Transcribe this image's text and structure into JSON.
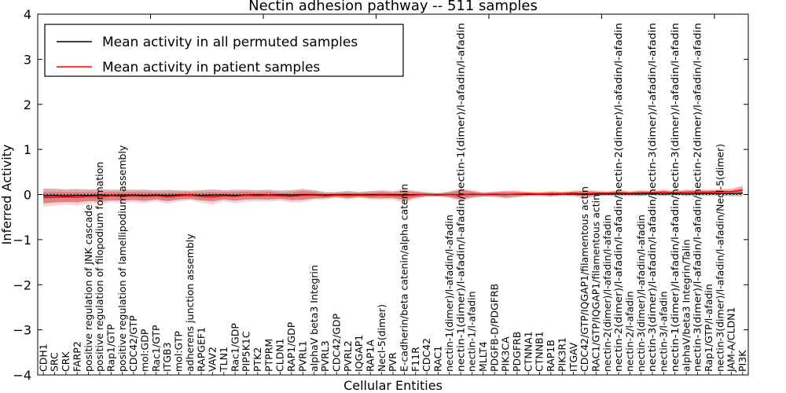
{
  "figure": {
    "title": "Nectin adhesion pathway -- 511 samples",
    "xlabel": "Cellular Entities",
    "ylabel": "Inferred Activity"
  },
  "legend": {
    "entries": [
      {
        "label": "Mean activity in all permuted samples",
        "color": "#000000"
      },
      {
        "label": "Mean activity in patient samples",
        "color": "#ff0000"
      }
    ]
  },
  "chart_data": {
    "type": "line",
    "title": "Nectin adhesion pathway -- 511 samples",
    "xlabel": "Cellular Entities",
    "ylabel": "Inferred Activity",
    "ylim": [
      -4,
      4
    ],
    "ytick_values": [
      -4,
      -3,
      -2,
      -1,
      0,
      1,
      2,
      3,
      4
    ],
    "ytick_labels": [
      "−4",
      "−3",
      "−2",
      "−1",
      "0",
      "1",
      "2",
      "3",
      "4"
    ],
    "x_major_tick_every": 10,
    "grid": false,
    "legend_position": "upper left",
    "zero_line": true,
    "categories": [
      "CDH1",
      "SRC",
      "CRK",
      "FARP2",
      "positive regulation of JNK cascade",
      "positive regulation of filopodium formation",
      "Rap1/GTP",
      "positive regulation of lamellipodium assembly",
      "CDC42/GTP",
      "mol:GDP",
      "Rac1/GTP",
      "ITGB3",
      "mol:GTP",
      "adherens junction assembly",
      "RAPGEF1",
      "VAV2",
      "TLN1",
      "Rac1/GDP",
      "PIP5K1C",
      "PTK2",
      "PTPRM",
      "CLDN1",
      "RAP1/GDP",
      "PVRL1",
      "alphaV beta3 Integrin",
      "PVRL3",
      "CDC42/GDP",
      "PVRL2",
      "IQGAP1",
      "RAP1A",
      "Necl-5(dimer)",
      "PVR",
      "E-cadherin/beta catenin/alpha catenin",
      "F11R",
      "CDC42",
      "RAC1",
      "nectin-1(dimer)/l-afadin/l-afadin",
      "nectin-1(dimer)/l-afadin/l-afadin/nectin-1(dimer)/l-afadin/l-afadin",
      "nectin-1/l-afadin",
      "MLLT4",
      "PDGFB-D/PDGFRB",
      "PIK3CA",
      "PDGFRB",
      "CTNNA1",
      "CTNNB1",
      "RAP1B",
      "PIK3R1",
      "ITGAV",
      "CDC42/GTP/IQGAP1/filamentous actin",
      "RAC1/GTP/IQGAP1/filamentous actin",
      "nectin-2(dimer)/l-afadin/l-afadin",
      "nectin-2(dimer)/l-afadin/l-afadin/nectin-2(dimer)/l-afadin/l-afadin",
      "nectin-2/l-afadin",
      "nectin-3(dimer)/l-afadin/l-afadin",
      "nectin-3(dimer)/l-afadin/l-afadin/nectin-3(dimer)/l-afadin/l-afadin",
      "nectin-3/l-afadin",
      "nectin-1(dimer)/l-afadin/l-afadin/nectin-3(dimer)/l-afadin/l-afadin",
      "alphaV/beta3 Integrin/Talin",
      "nectin-3(dimer)/l-afadin/l-afadin/nectin-2(dimer)/l-afadin/l-afadin",
      "Rap1/GTP/l-afadin",
      "nectin-3(dimer)/l-afadin/l-afadin/Necl-5(dimer)",
      "JAM-A/CLDN1",
      "PI3K"
    ],
    "series": [
      {
        "name": "Mean activity in all permuted samples",
        "color": "#000000",
        "line_width": 1.3,
        "band_color": "#999999",
        "band_opacity": 0.45,
        "values": [
          -0.03,
          -0.02,
          -0.03,
          -0.02,
          -0.02,
          -0.01,
          -0.02,
          -0.01,
          -0.01,
          -0.02,
          -0.01,
          -0.02,
          -0.01,
          -0.01,
          -0.02,
          -0.01,
          -0.01,
          -0.02,
          -0.01,
          0.0,
          -0.01,
          0.0,
          -0.01,
          0.0,
          0.0,
          -0.01,
          0.0,
          0.0,
          0.0,
          0.0,
          0.0,
          0.0,
          -0.01,
          0.0,
          0.0,
          0.0,
          0.0,
          0.0,
          0.0,
          0.0,
          0.0,
          0.0,
          0.01,
          0.0,
          0.01,
          0.0,
          0.01,
          0.01,
          0.0,
          0.01,
          0.01,
          0.01,
          0.01,
          0.01,
          0.02,
          0.01,
          0.02,
          0.01,
          0.02,
          0.02,
          0.02,
          0.02,
          0.03
        ],
        "band_halfwidth": [
          0.16,
          0.15,
          0.14,
          0.14,
          0.13,
          0.13,
          0.12,
          0.12,
          0.11,
          0.12,
          0.1,
          0.12,
          0.1,
          0.09,
          0.11,
          0.12,
          0.1,
          0.11,
          0.1,
          0.1,
          0.1,
          0.09,
          0.1,
          0.11,
          0.09,
          0.07,
          0.06,
          0.08,
          0.06,
          0.08,
          0.08,
          0.07,
          0.11,
          0.07,
          0.05,
          0.04,
          0.06,
          0.11,
          0.07,
          0.05,
          0.05,
          0.07,
          0.06,
          0.04,
          0.04,
          0.05,
          0.04,
          0.05,
          0.07,
          0.05,
          0.04,
          0.05,
          0.04,
          0.05,
          0.04,
          0.05,
          0.04,
          0.05,
          0.05,
          0.05,
          0.05,
          0.06,
          0.08
        ]
      },
      {
        "name": "Mean activity in patient samples",
        "color": "#ff0000",
        "line_width": 1.6,
        "band_color": "#dd4444",
        "band_opacity": 0.42,
        "outer_band_scale": 1.55,
        "outer_band_opacity": 0.22,
        "values": [
          -0.07,
          -0.06,
          -0.05,
          -0.06,
          -0.04,
          -0.05,
          -0.03,
          -0.04,
          -0.03,
          -0.04,
          -0.03,
          -0.05,
          -0.03,
          -0.02,
          -0.04,
          -0.05,
          -0.03,
          -0.04,
          -0.02,
          -0.03,
          -0.02,
          -0.03,
          -0.04,
          -0.02,
          -0.01,
          -0.03,
          -0.01,
          -0.02,
          -0.01,
          -0.02,
          -0.01,
          -0.02,
          -0.03,
          -0.01,
          0.0,
          -0.01,
          0.0,
          -0.01,
          0.01,
          0.0,
          0.01,
          0.0,
          0.01,
          0.02,
          0.01,
          0.02,
          0.02,
          0.03,
          0.02,
          0.03,
          0.03,
          0.04,
          0.03,
          0.04,
          0.04,
          0.05,
          0.04,
          0.05,
          0.05,
          0.05,
          0.06,
          0.06,
          0.1
        ],
        "band_halfwidth": [
          0.13,
          0.12,
          0.11,
          0.12,
          0.1,
          0.11,
          0.09,
          0.1,
          0.09,
          0.1,
          0.08,
          0.1,
          0.08,
          0.07,
          0.09,
          0.11,
          0.08,
          0.1,
          0.09,
          0.08,
          0.09,
          0.07,
          0.09,
          0.1,
          0.07,
          0.05,
          0.04,
          0.06,
          0.04,
          0.06,
          0.07,
          0.06,
          0.1,
          0.06,
          0.03,
          0.02,
          0.05,
          0.1,
          0.06,
          0.03,
          0.04,
          0.06,
          0.05,
          0.03,
          0.03,
          0.04,
          0.03,
          0.04,
          0.06,
          0.04,
          0.03,
          0.04,
          0.03,
          0.04,
          0.03,
          0.04,
          0.03,
          0.04,
          0.04,
          0.04,
          0.04,
          0.05,
          0.07
        ]
      }
    ]
  }
}
